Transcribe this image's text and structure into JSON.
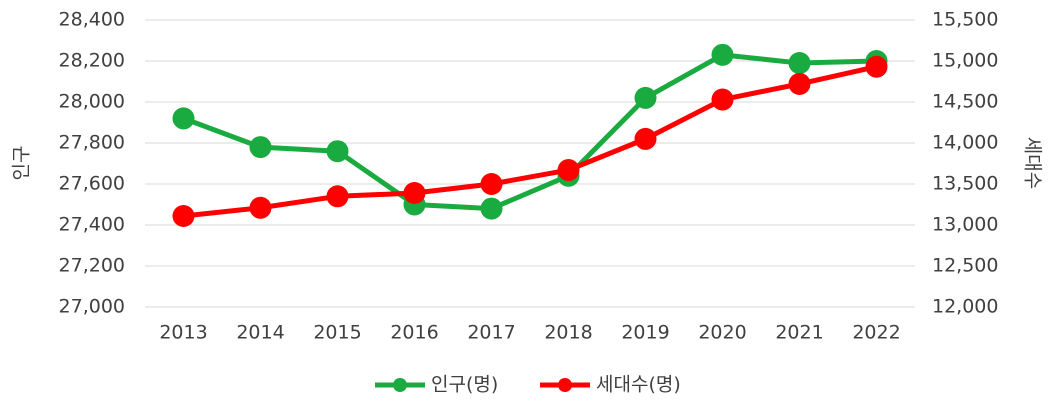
{
  "chart_data": {
    "type": "line",
    "categories": [
      "2013",
      "2014",
      "2015",
      "2016",
      "2017",
      "2018",
      "2019",
      "2020",
      "2021",
      "2022"
    ],
    "series": [
      {
        "name": "인구(명)",
        "color": "#1aab40",
        "values": [
          27920,
          27780,
          27760,
          27500,
          27480,
          27640,
          28020,
          28230,
          28190,
          28200
        ]
      },
      {
        "name": "세대수(명)",
        "color": "#ff0000",
        "axis": "y2",
        "values": [
          13110,
          13210,
          13350,
          13390,
          13500,
          13670,
          14050,
          14530,
          14720,
          14930
        ]
      }
    ],
    "ylabel": "인구",
    "y2label": "세대수",
    "ylim": [
      27000,
      28400
    ],
    "yticks": [
      {
        "value": 27000,
        "label": "27,000"
      },
      {
        "value": 27200,
        "label": "27,200"
      },
      {
        "value": 27400,
        "label": "27,400"
      },
      {
        "value": 27600,
        "label": "27,600"
      },
      {
        "value": 27800,
        "label": "27,800"
      },
      {
        "value": 28000,
        "label": "28,000"
      },
      {
        "value": 28200,
        "label": "28,200"
      },
      {
        "value": 28400,
        "label": "28,400"
      }
    ],
    "y2lim": [
      12000,
      15500
    ],
    "y2ticks": [
      {
        "value": 12000,
        "label": "12,000"
      },
      {
        "value": 12500,
        "label": "12,500"
      },
      {
        "value": 13000,
        "label": "13,000"
      },
      {
        "value": 13500,
        "label": "13,500"
      },
      {
        "value": 14000,
        "label": "14,000"
      },
      {
        "value": 14500,
        "label": "14,500"
      },
      {
        "value": 15000,
        "label": "15,000"
      },
      {
        "value": 15500,
        "label": "15,500"
      }
    ],
    "grid": true,
    "legend": "bottom"
  }
}
